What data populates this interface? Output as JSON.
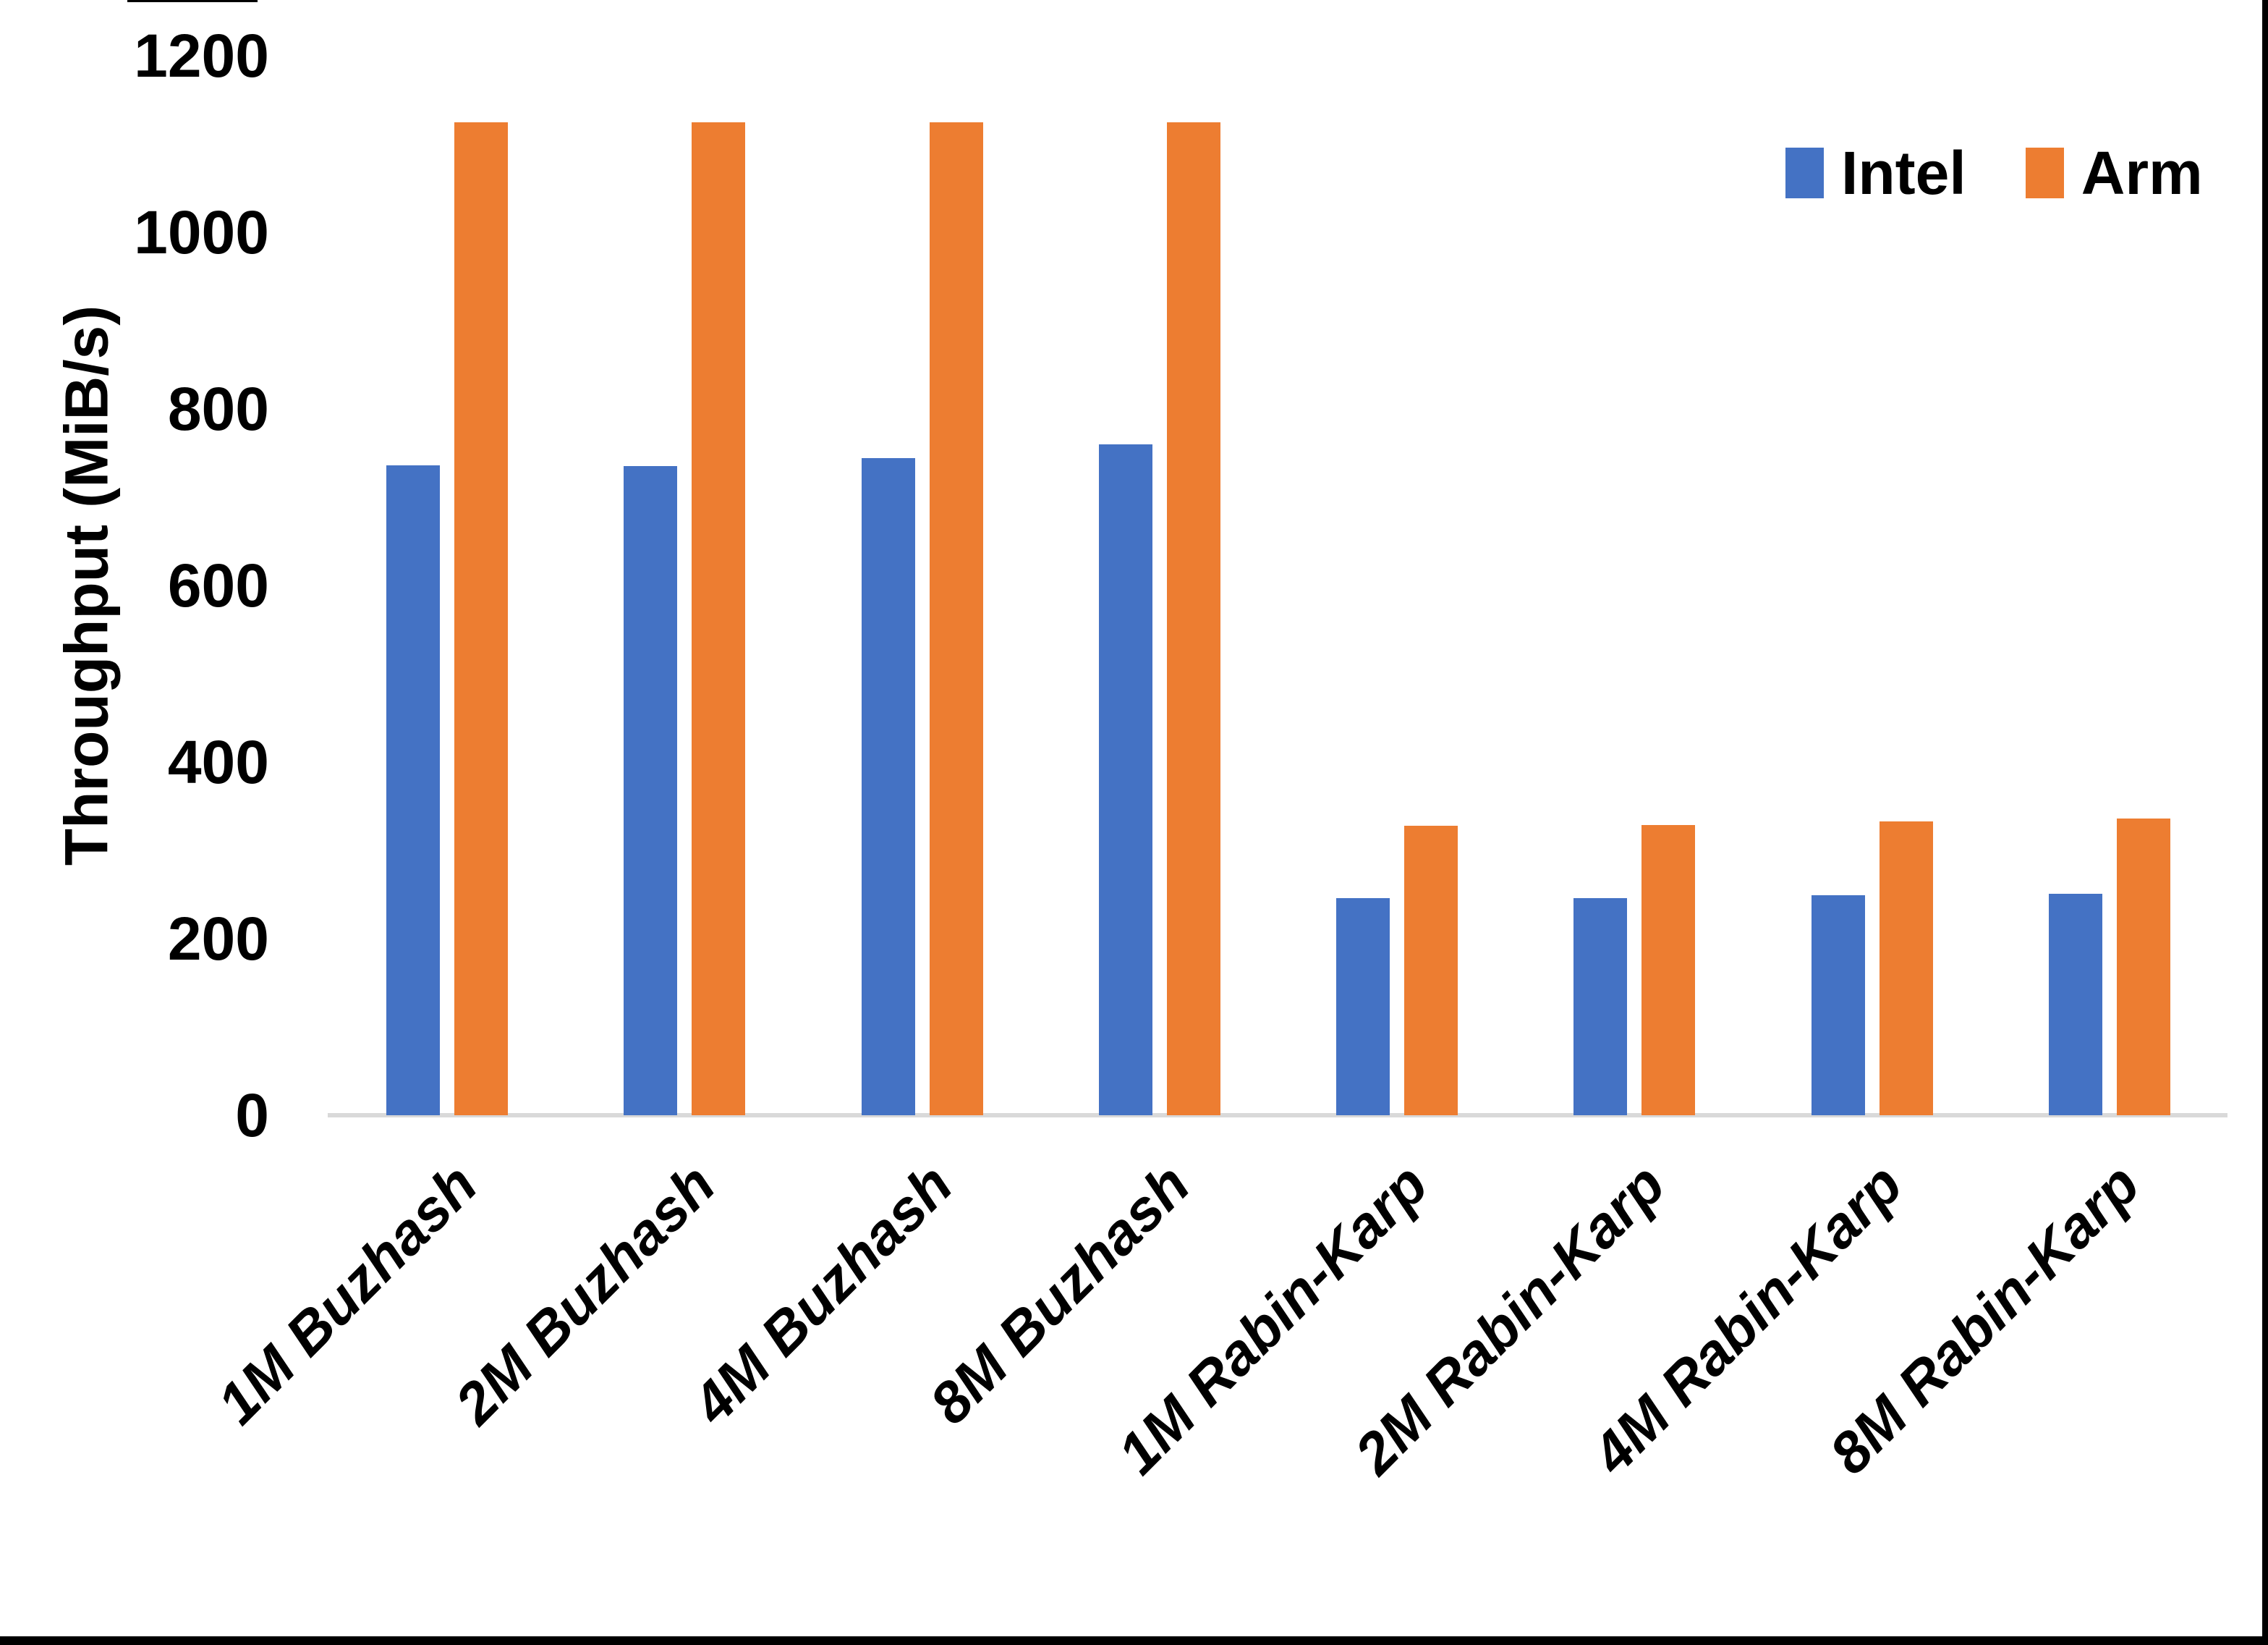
{
  "figure": {
    "background": "#ffffff",
    "frame_border_color": "#000000"
  },
  "axis": {
    "baseline_color": "#D9D9D9",
    "text_color": "#000000"
  },
  "legend": {
    "position": "top-right",
    "items": [
      {
        "label": "Intel",
        "color": "#4472C4"
      },
      {
        "label": "Arm",
        "color": "#ED7D31"
      }
    ]
  },
  "chart_data": {
    "type": "bar",
    "title": "",
    "xlabel": "",
    "ylabel": "Throughput (MiB/s)",
    "ylim": [
      0,
      1200
    ],
    "yticks": [
      0,
      200,
      400,
      600,
      800,
      1000,
      1200
    ],
    "grid": false,
    "legend_position": "top-right",
    "categories": [
      "1M Buzhash",
      "2M Buzhash",
      "4M Buzhash",
      "8M Buzhash",
      "1M Rabin-Karp",
      "2M Rabin-Karp",
      "4M Rabin-Karp",
      "8M Rabin-Karp"
    ],
    "series": [
      {
        "name": "Intel",
        "color": "#4472C4",
        "values": [
          736,
          735,
          744,
          760,
          246,
          246,
          249,
          251
        ]
      },
      {
        "name": "Arm",
        "color": "#ED7D31",
        "values": [
          1125,
          1125,
          1125,
          1125,
          328,
          329,
          333,
          336
        ]
      }
    ]
  }
}
